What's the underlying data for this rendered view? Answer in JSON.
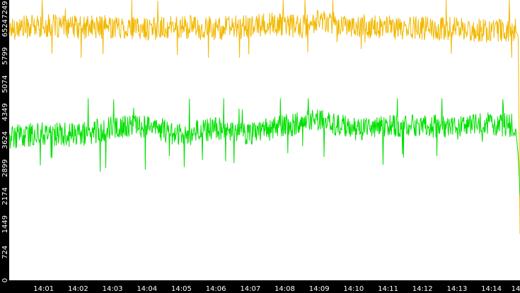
{
  "chart_data": {
    "type": "line",
    "title": "",
    "xlabel": "",
    "ylabel": "",
    "x_tick_labels": [
      "14:01",
      "14:02",
      "14:03",
      "14:04",
      "14:05",
      "14:06",
      "14:07",
      "14:08",
      "14:09",
      "14:10",
      "14:11",
      "14:12",
      "14:13",
      "14:14",
      "14"
    ],
    "y_tick_labels": [
      "0",
      "724",
      "1449",
      "2174",
      "2899",
      "3624",
      "4349",
      "5074",
      "5799",
      "6524",
      "7249"
    ],
    "xlim": [
      0,
      14.83
    ],
    "ylim": [
      0,
      7249
    ],
    "grid": false,
    "legend": "none",
    "colors": {
      "background": "#ffffff",
      "frame": "#000000",
      "tick_text": "#ffffff",
      "series_1": "#f2b800",
      "series_2": "#00e000"
    },
    "series": [
      {
        "color": "#f2b800",
        "base": 6550,
        "noise_amplitude": 380,
        "min": 5760,
        "max": 7249,
        "x": [
          0.0,
          1.0,
          2.0,
          3.0,
          4.0,
          4.5,
          5.0,
          6.0,
          7.0,
          7.5,
          8.0,
          8.5,
          9.0,
          10.0,
          11.0,
          12.0,
          13.0,
          14.0,
          14.7,
          14.78,
          14.83
        ],
        "values": [
          6520,
          6580,
          6540,
          6560,
          6500,
          6540,
          6560,
          6520,
          6550,
          6630,
          6600,
          6550,
          6740,
          6580,
          6540,
          6520,
          6500,
          6450,
          6480,
          6300,
          1200
        ]
      },
      {
        "color": "#00e000",
        "base": 3950,
        "noise_amplitude": 380,
        "min": 2560,
        "max": 4700,
        "x": [
          0.0,
          1.0,
          2.0,
          3.0,
          4.0,
          5.0,
          6.0,
          7.0,
          8.0,
          9.0,
          10.0,
          11.0,
          12.0,
          13.0,
          14.0,
          14.7,
          14.78,
          14.83
        ],
        "values": [
          3700,
          3800,
          3750,
          3950,
          4000,
          3750,
          3950,
          3800,
          4000,
          4150,
          3900,
          4000,
          4000,
          3950,
          4050,
          4000,
          3200,
          2200
        ]
      }
    ]
  }
}
